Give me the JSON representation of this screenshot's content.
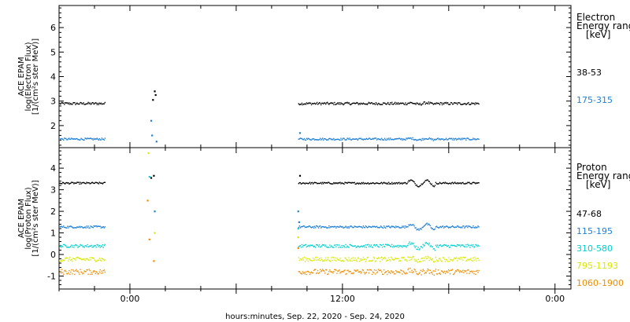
{
  "xlabel": "hours:minutes, Sep. 22, 2020 - Sep. 24, 2020",
  "x_ticks": [
    "0:00",
    "12:00",
    "0:00"
  ],
  "chart_data": [
    {
      "type": "scatter",
      "name": "electron",
      "ylabel_lines": [
        "ACE EPAM",
        "log(Electron Flux)",
        "[1/(cm²s ster MeV)]"
      ],
      "ylim": [
        1.1,
        6.9
      ],
      "yticks": [
        2,
        3,
        4,
        5,
        6
      ],
      "xlim_hours": [
        -4,
        24.9
      ],
      "legend_title_lines": [
        "Electron",
        "Energy ranges",
        "[keV]"
      ],
      "series": [
        {
          "name": "38-53",
          "color": "#000000",
          "level": 2.92,
          "noise": 0.05,
          "segments": [
            [
              -4.0,
              -1.4
            ],
            [
              9.5,
              19.7
            ]
          ],
          "burst": [
            [
              1.3,
              3.05
            ],
            [
              1.4,
              3.4
            ],
            [
              1.45,
              3.25
            ]
          ]
        },
        {
          "name": "175-315",
          "color": "#1e7fd6",
          "level": 1.47,
          "noise": 0.04,
          "segments": [
            [
              -4.0,
              -1.4
            ],
            [
              9.5,
              19.7
            ]
          ],
          "burst": [
            [
              1.2,
              2.2
            ],
            [
              1.25,
              1.6
            ],
            [
              1.5,
              1.35
            ],
            [
              9.6,
              1.7
            ]
          ]
        }
      ]
    },
    {
      "type": "scatter",
      "name": "proton",
      "ylabel_lines": [
        "ACE EPAM",
        "log(Proton Flux)",
        "[1/(cm²s ster MeV)]"
      ],
      "ylim": [
        -1.6,
        4.95
      ],
      "yticks": [
        -1,
        0,
        1,
        2,
        3,
        4
      ],
      "xlim_hours": [
        -4,
        24.9
      ],
      "legend_title_lines": [
        "Proton",
        "Energy ranges",
        "[keV]"
      ],
      "series": [
        {
          "name": "47-68",
          "color": "#000000",
          "level": 3.33,
          "noise": 0.04,
          "segments": [
            [
              -4.0,
              -1.4
            ],
            [
              9.5,
              19.7
            ]
          ],
          "burst": [
            [
              1.2,
              3.55
            ],
            [
              1.35,
              3.65
            ],
            [
              9.6,
              3.65
            ]
          ]
        },
        {
          "name": "115-195",
          "color": "#1e7fd6",
          "level": 1.3,
          "noise": 0.05,
          "segments": [
            [
              -4.0,
              -1.4
            ],
            [
              9.5,
              19.7
            ]
          ],
          "burst": [
            [
              1.4,
              2.0
            ],
            [
              9.5,
              2.0
            ],
            [
              9.55,
              1.5
            ]
          ]
        },
        {
          "name": "310-580",
          "color": "#00d0d0",
          "level": 0.42,
          "noise": 0.07,
          "segments": [
            [
              -4.0,
              -1.4
            ],
            [
              9.5,
              19.7
            ]
          ],
          "burst": [
            [
              1.1,
              3.6
            ],
            [
              9.5,
              1.2
            ]
          ]
        },
        {
          "name": "795-1193",
          "color": "#d8e800",
          "level": -0.2,
          "noise": 0.1,
          "segments": [
            [
              -4.0,
              -1.4
            ],
            [
              9.5,
              19.7
            ]
          ],
          "burst": [
            [
              1.05,
              4.7
            ],
            [
              1.4,
              1.0
            ],
            [
              9.5,
              0.8
            ]
          ]
        },
        {
          "name": "1060-1900",
          "color": "#f08c00",
          "level": -0.78,
          "noise": 0.12,
          "segments": [
            [
              -4.0,
              -1.4
            ],
            [
              9.5,
              19.7
            ]
          ],
          "burst": [
            [
              1.0,
              2.5
            ],
            [
              1.1,
              0.7
            ],
            [
              1.35,
              -0.3
            ],
            [
              9.5,
              0.3
            ]
          ]
        }
      ]
    }
  ]
}
